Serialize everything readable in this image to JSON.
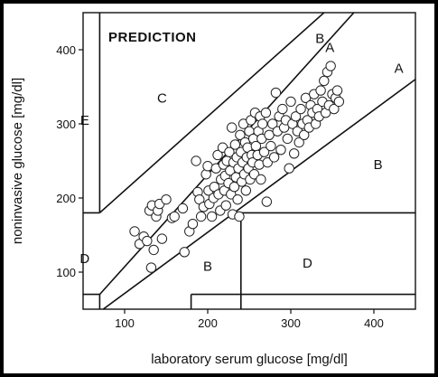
{
  "chart_data": {
    "type": "scatter",
    "title": "PREDICTION",
    "xlabel": "laboratory serum glucose [mg/dl]",
    "ylabel": "noninvasive glucose [mg/dl]",
    "xlim": [
      50,
      450
    ],
    "ylim": [
      50,
      450
    ],
    "xticks": [
      100,
      200,
      300,
      400
    ],
    "yticks": [
      100,
      200,
      300,
      400
    ],
    "tick_labels": {
      "x": [
        "100",
        "200",
        "300",
        "400"
      ],
      "y": [
        "100",
        "200",
        "300",
        "400"
      ]
    },
    "grid": false,
    "marker": "open-circle",
    "zones": [
      {
        "label": "A",
        "x": 347,
        "y": 403
      },
      {
        "label": "A",
        "x": 430,
        "y": 375
      },
      {
        "label": "B",
        "x": 335,
        "y": 415
      },
      {
        "label": "B",
        "x": 405,
        "y": 245
      },
      {
        "label": "B",
        "x": 200,
        "y": 108
      },
      {
        "label": "C",
        "x": 145,
        "y": 335
      },
      {
        "label": "D",
        "x": 52,
        "y": 118
      },
      {
        "label": "D",
        "x": 320,
        "y": 112
      },
      {
        "label": "E",
        "x": 52,
        "y": 305
      }
    ],
    "boundaries": [
      {
        "x": [
          70,
          400
        ],
        "y": [
          70,
          480
        ]
      },
      {
        "x": [
          50,
          450
        ],
        "y": [
          30,
          360
        ]
      },
      {
        "x": [
          70,
          450
        ],
        "y": [
          180,
          560
        ]
      },
      {
        "x": [
          70,
          70
        ],
        "y": [
          180,
          450
        ]
      },
      {
        "x": [
          50,
          70
        ],
        "y": [
          180,
          180
        ]
      },
      {
        "x": [
          70,
          70
        ],
        "y": [
          50,
          70
        ]
      },
      {
        "x": [
          50,
          70
        ],
        "y": [
          70,
          70
        ]
      },
      {
        "x": [
          240,
          450
        ],
        "y": [
          180,
          180
        ]
      },
      {
        "x": [
          240,
          240
        ],
        "y": [
          50,
          180
        ]
      },
      {
        "x": [
          180,
          180
        ],
        "y": [
          50,
          70
        ]
      },
      {
        "x": [
          180,
          450
        ],
        "y": [
          70,
          70
        ]
      }
    ],
    "points": [
      {
        "x": 112,
        "y": 155
      },
      {
        "x": 118,
        "y": 138
      },
      {
        "x": 123,
        "y": 148
      },
      {
        "x": 127,
        "y": 142
      },
      {
        "x": 130,
        "y": 183
      },
      {
        "x": 132,
        "y": 106
      },
      {
        "x": 133,
        "y": 190
      },
      {
        "x": 135,
        "y": 130
      },
      {
        "x": 138,
        "y": 175
      },
      {
        "x": 140,
        "y": 183
      },
      {
        "x": 142,
        "y": 192
      },
      {
        "x": 145,
        "y": 145
      },
      {
        "x": 150,
        "y": 198
      },
      {
        "x": 157,
        "y": 173
      },
      {
        "x": 160,
        "y": 175
      },
      {
        "x": 170,
        "y": 186
      },
      {
        "x": 172,
        "y": 127
      },
      {
        "x": 178,
        "y": 155
      },
      {
        "x": 182,
        "y": 165
      },
      {
        "x": 186,
        "y": 250
      },
      {
        "x": 188,
        "y": 208
      },
      {
        "x": 190,
        "y": 198
      },
      {
        "x": 192,
        "y": 175
      },
      {
        "x": 195,
        "y": 188
      },
      {
        "x": 198,
        "y": 232
      },
      {
        "x": 200,
        "y": 243
      },
      {
        "x": 201,
        "y": 210
      },
      {
        "x": 202,
        "y": 192
      },
      {
        "x": 205,
        "y": 175
      },
      {
        "x": 207,
        "y": 200
      },
      {
        "x": 208,
        "y": 215
      },
      {
        "x": 210,
        "y": 240
      },
      {
        "x": 212,
        "y": 258
      },
      {
        "x": 213,
        "y": 205
      },
      {
        "x": 215,
        "y": 183
      },
      {
        "x": 216,
        "y": 225
      },
      {
        "x": 218,
        "y": 268
      },
      {
        "x": 219,
        "y": 245
      },
      {
        "x": 220,
        "y": 210
      },
      {
        "x": 221,
        "y": 230
      },
      {
        "x": 222,
        "y": 190
      },
      {
        "x": 223,
        "y": 250
      },
      {
        "x": 225,
        "y": 220
      },
      {
        "x": 226,
        "y": 262
      },
      {
        "x": 227,
        "y": 237
      },
      {
        "x": 228,
        "y": 205
      },
      {
        "x": 229,
        "y": 295
      },
      {
        "x": 230,
        "y": 178
      },
      {
        "x": 231,
        "y": 248
      },
      {
        "x": 232,
        "y": 215
      },
      {
        "x": 233,
        "y": 272
      },
      {
        "x": 234,
        "y": 228
      },
      {
        "x": 235,
        "y": 255
      },
      {
        "x": 236,
        "y": 198
      },
      {
        "x": 237,
        "y": 240
      },
      {
        "x": 238,
        "y": 175
      },
      {
        "x": 239,
        "y": 285
      },
      {
        "x": 240,
        "y": 262
      },
      {
        "x": 241,
        "y": 222
      },
      {
        "x": 242,
        "y": 248
      },
      {
        "x": 243,
        "y": 300
      },
      {
        "x": 244,
        "y": 232
      },
      {
        "x": 245,
        "y": 275
      },
      {
        "x": 246,
        "y": 210
      },
      {
        "x": 247,
        "y": 255
      },
      {
        "x": 248,
        "y": 268
      },
      {
        "x": 249,
        "y": 240
      },
      {
        "x": 250,
        "y": 290
      },
      {
        "x": 251,
        "y": 225
      },
      {
        "x": 252,
        "y": 305
      },
      {
        "x": 253,
        "y": 258
      },
      {
        "x": 254,
        "y": 248
      },
      {
        "x": 255,
        "y": 280
      },
      {
        "x": 256,
        "y": 232
      },
      {
        "x": 257,
        "y": 315
      },
      {
        "x": 258,
        "y": 270
      },
      {
        "x": 260,
        "y": 258
      },
      {
        "x": 261,
        "y": 290
      },
      {
        "x": 262,
        "y": 245
      },
      {
        "x": 263,
        "y": 310
      },
      {
        "x": 264,
        "y": 225
      },
      {
        "x": 265,
        "y": 280
      },
      {
        "x": 266,
        "y": 300
      },
      {
        "x": 268,
        "y": 262
      },
      {
        "x": 270,
        "y": 315
      },
      {
        "x": 271,
        "y": 195
      },
      {
        "x": 272,
        "y": 248
      },
      {
        "x": 274,
        "y": 285
      },
      {
        "x": 276,
        "y": 270
      },
      {
        "x": 278,
        "y": 300
      },
      {
        "x": 280,
        "y": 255
      },
      {
        "x": 282,
        "y": 342
      },
      {
        "x": 284,
        "y": 290
      },
      {
        "x": 286,
        "y": 310
      },
      {
        "x": 288,
        "y": 265
      },
      {
        "x": 290,
        "y": 320
      },
      {
        "x": 292,
        "y": 295
      },
      {
        "x": 294,
        "y": 305
      },
      {
        "x": 296,
        "y": 280
      },
      {
        "x": 298,
        "y": 240
      },
      {
        "x": 300,
        "y": 330
      },
      {
        "x": 302,
        "y": 300
      },
      {
        "x": 304,
        "y": 260
      },
      {
        "x": 306,
        "y": 310
      },
      {
        "x": 308,
        "y": 290
      },
      {
        "x": 310,
        "y": 275
      },
      {
        "x": 312,
        "y": 320
      },
      {
        "x": 314,
        "y": 300
      },
      {
        "x": 316,
        "y": 285
      },
      {
        "x": 318,
        "y": 335
      },
      {
        "x": 320,
        "y": 305
      },
      {
        "x": 322,
        "y": 295
      },
      {
        "x": 324,
        "y": 325
      },
      {
        "x": 326,
        "y": 315
      },
      {
        "x": 328,
        "y": 340
      },
      {
        "x": 330,
        "y": 300
      },
      {
        "x": 332,
        "y": 320
      },
      {
        "x": 334,
        "y": 310
      },
      {
        "x": 336,
        "y": 345
      },
      {
        "x": 338,
        "y": 330
      },
      {
        "x": 340,
        "y": 358
      },
      {
        "x": 342,
        "y": 315
      },
      {
        "x": 344,
        "y": 370
      },
      {
        "x": 346,
        "y": 325
      },
      {
        "x": 348,
        "y": 378
      },
      {
        "x": 350,
        "y": 340
      },
      {
        "x": 352,
        "y": 320
      },
      {
        "x": 354,
        "y": 335
      },
      {
        "x": 356,
        "y": 345
      },
      {
        "x": 358,
        "y": 330
      }
    ]
  }
}
